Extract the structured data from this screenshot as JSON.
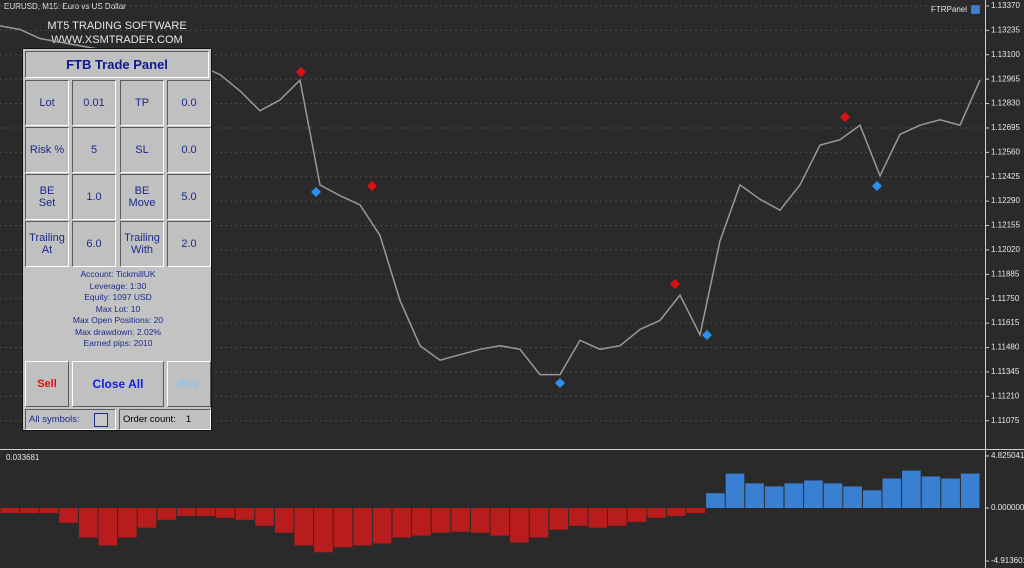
{
  "window": {
    "symbol_title": "EURUSD, M15:  Euro vs US Dollar",
    "brand_line1": "MT5 TRADING SOFTWARE",
    "brand_line2": "WWW.XSMTRADER.COM",
    "panel_name": "FTRPanel"
  },
  "panel": {
    "title": "FTB Trade Panel",
    "fields": [
      {
        "label": "Lot",
        "value": "0.01"
      },
      {
        "label": "TP",
        "value": "0.0"
      },
      {
        "label": "Risk %",
        "value": "5"
      },
      {
        "label": "SL",
        "value": "0.0"
      },
      {
        "label": "BE Set",
        "value": "1.0"
      },
      {
        "label": "BE Move",
        "value": "5.0"
      },
      {
        "label": "Trailing At",
        "value": "6.0"
      },
      {
        "label": "Trailing With",
        "value": "2.0"
      }
    ],
    "info": [
      "Account: TickmillUK",
      "Leverage: 1:30",
      "Equity: 1097 USD",
      "Max Lot: 10",
      "Max Open Positions: 20",
      "Max drawdown: 2.02%",
      "Earned pips: 2010"
    ],
    "buttons": [
      "Sell",
      "Close All",
      "Buy"
    ],
    "all_symbols_label": "All symbols:",
    "order_count_label": "Order count:",
    "order_count": 1
  },
  "chart_data": [
    {
      "type": "line",
      "color": "#9a9a9a",
      "values": [
        1.1326,
        1.1324,
        1.1319,
        1.1317,
        1.1315,
        1.1313,
        1.131,
        1.1308,
        1.1307,
        1.1306,
        1.1304,
        1.1299,
        1.129,
        1.1279,
        1.1285,
        1.1296,
        1.1238,
        1.1232,
        1.1227,
        1.121,
        1.1174,
        1.1149,
        1.1141,
        1.1144,
        1.1147,
        1.1149,
        1.1147,
        1.1133,
        1.1133,
        1.1152,
        1.1147,
        1.1149,
        1.1158,
        1.1163,
        1.1177,
        1.1155,
        1.1207,
        1.1238,
        1.123,
        1.1224,
        1.1238,
        1.126,
        1.1263,
        1.1271,
        1.1243,
        1.1266,
        1.1271,
        1.1274,
        1.1271,
        1.1296
      ],
      "ylim": [
        1.10924,
        1.13403
      ],
      "yticks": [
        {
          "value": 1.1337,
          "label": "1.13370"
        },
        {
          "value": 1.13235,
          "label": "1.13235"
        },
        {
          "value": 1.131,
          "label": "1.13100"
        },
        {
          "value": 1.12965,
          "label": "1.12965"
        },
        {
          "value": 1.1283,
          "label": "1.12830"
        },
        {
          "value": 1.12695,
          "label": "1.12695"
        },
        {
          "value": 1.1256,
          "label": "1.12560"
        },
        {
          "value": 1.12425,
          "label": "1.12425"
        },
        {
          "value": 1.1229,
          "label": "1.12290"
        },
        {
          "value": 1.12155,
          "label": "1.12155"
        },
        {
          "value": 1.1202,
          "label": "1.12020"
        },
        {
          "value": 1.11885,
          "label": "1.11885"
        },
        {
          "value": 1.1175,
          "label": "1.11750"
        },
        {
          "value": 1.11615,
          "label": "1.11615"
        },
        {
          "value": 1.1148,
          "label": "1.11480"
        },
        {
          "value": 1.11345,
          "label": "1.11345"
        },
        {
          "value": 1.1121,
          "label": "1.11210"
        },
        {
          "value": 1.11075,
          "label": "1.11075"
        }
      ],
      "grid": true
    },
    {
      "type": "bar",
      "subtitle": "0.033681",
      "positive_color": "#3a80d2",
      "negative_color": "#b81c1c",
      "values": [
        -0.46,
        -0.46,
        -0.46,
        -1.37,
        -2.73,
        -3.46,
        -2.73,
        -1.82,
        -1.09,
        -0.73,
        -0.73,
        -0.91,
        -1.09,
        -1.64,
        -2.28,
        -3.46,
        -4.1,
        -3.64,
        -3.46,
        -3.28,
        -2.73,
        -2.55,
        -2.28,
        -2.19,
        -2.28,
        -2.55,
        -3.19,
        -2.73,
        -2.0,
        -1.64,
        -1.82,
        -1.64,
        -1.28,
        -0.91,
        -0.73,
        -0.46,
        1.37,
        3.19,
        2.28,
        2.0,
        2.28,
        2.55,
        2.28,
        2.0,
        1.64,
        2.73,
        3.46,
        2.92,
        2.73,
        3.19
      ],
      "ylim": [
        -5.46,
        5.28
      ],
      "yticks": [
        4.825041,
        {
          "value": 0,
          "label": "0.000000"
        },
        -4.913601
      ]
    }
  ]
}
